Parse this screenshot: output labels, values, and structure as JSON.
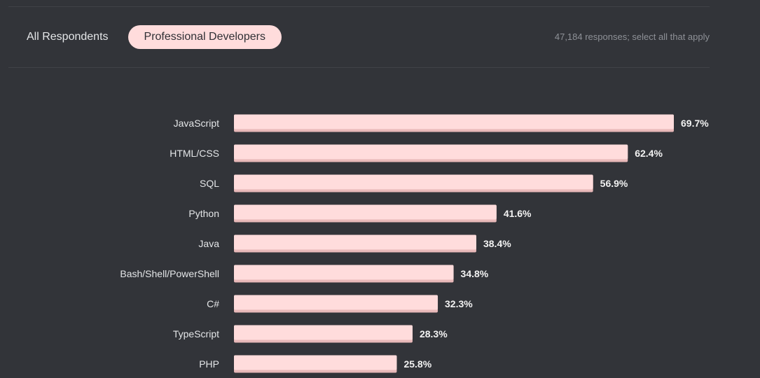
{
  "tabs": [
    {
      "label": "All Respondents",
      "active": false
    },
    {
      "label": "Professional Developers",
      "active": true
    }
  ],
  "responses_note": "47,184 responses; select all that apply",
  "colors": {
    "background": "#323439",
    "bar": "#ffdcdc",
    "bar_shadow": "#e8b9b9",
    "active_tab": "#ffdcdc"
  },
  "chart_data": {
    "type": "bar",
    "orientation": "horizontal",
    "title": "",
    "xlabel": "",
    "ylabel": "",
    "unit": "%",
    "xlim": [
      0,
      70
    ],
    "grid": false,
    "legend": "none",
    "categories": [
      "JavaScript",
      "HTML/CSS",
      "SQL",
      "Python",
      "Java",
      "Bash/Shell/PowerShell",
      "C#",
      "TypeScript",
      "PHP"
    ],
    "values": [
      69.7,
      62.4,
      56.9,
      41.6,
      38.4,
      34.8,
      32.3,
      28.3,
      25.8
    ],
    "labels": [
      "69.7%",
      "62.4%",
      "56.9%",
      "41.6%",
      "38.4%",
      "34.8%",
      "32.3%",
      "28.3%",
      "25.8%"
    ]
  }
}
